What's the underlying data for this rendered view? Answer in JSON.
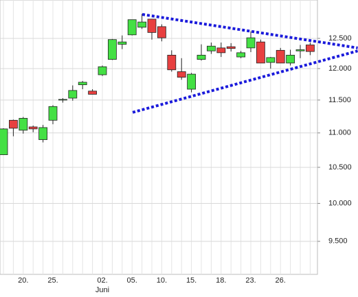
{
  "chart_data": {
    "type": "candlestick",
    "categories": [
      null,
      null,
      "20.",
      null,
      null,
      "25.",
      null,
      null,
      null,
      null,
      "02.",
      null,
      null,
      "05.",
      null,
      null,
      "10.",
      null,
      null,
      "15.",
      null,
      null,
      "18.",
      null,
      null,
      "23.",
      null,
      null,
      "26.",
      null,
      null,
      null
    ],
    "month_label": "Juni",
    "open": [
      10680,
      11190,
      11040,
      11090,
      10900,
      11190,
      11500,
      11530,
      11740,
      11640,
      11900,
      12150,
      12400,
      12560,
      12690,
      12830,
      12700,
      12220,
      11950,
      11670,
      12150,
      12290,
      12340,
      12360,
      12190,
      12340,
      12440,
      12100,
      12300,
      12090,
      12290,
      12390
    ],
    "high": [
      11070,
      11200,
      11240,
      11110,
      11120,
      11420,
      11530,
      11730,
      11800,
      11670,
      12050,
      12490,
      12550,
      12820,
      12920,
      12830,
      12740,
      12300,
      12170,
      11930,
      12400,
      12430,
      12430,
      12420,
      12290,
      12620,
      12480,
      12190,
      12340,
      12310,
      12390,
      12430
    ],
    "low": [
      10680,
      10950,
      10990,
      11010,
      10860,
      11130,
      11460,
      11490,
      11670,
      11590,
      11880,
      12140,
      12320,
      12550,
      12660,
      12480,
      12450,
      11950,
      11820,
      11620,
      12130,
      12240,
      12190,
      12280,
      12170,
      12270,
      12090,
      12000,
      12090,
      12050,
      12170,
      12220
    ],
    "close": [
      11060,
      11070,
      11220,
      11060,
      11080,
      11400,
      11510,
      11650,
      11780,
      11590,
      12030,
      12480,
      12440,
      12820,
      12780,
      12600,
      12510,
      11980,
      11860,
      11910,
      12220,
      12370,
      12260,
      12330,
      12260,
      12510,
      12090,
      12180,
      12090,
      12220,
      12310,
      12280
    ],
    "up_color": "#44e044",
    "down_color": "#e84040",
    "trendlines": [
      {
        "x": [
          14.03,
          35.8
        ],
        "values": [
          12912,
          12340
        ],
        "color": "#1a1adb"
      },
      {
        "x": [
          13.06,
          35.8
        ],
        "values": [
          11310,
          12290
        ],
        "color": "#1a1adb"
      }
    ],
    "log_scale": true,
    "ylim": [
      9085,
      13166
    ],
    "yticks": [
      {
        "value": 9500,
        "label": "9.500"
      },
      {
        "value": 10000,
        "label": "10.000"
      },
      {
        "value": 10500,
        "label": "10.500"
      },
      {
        "value": 11000,
        "label": "11.000"
      },
      {
        "value": 11500,
        "label": "11.500"
      },
      {
        "value": 12000,
        "label": "12.000"
      },
      {
        "value": 12500,
        "label": "12.500"
      }
    ],
    "grid": true
  }
}
